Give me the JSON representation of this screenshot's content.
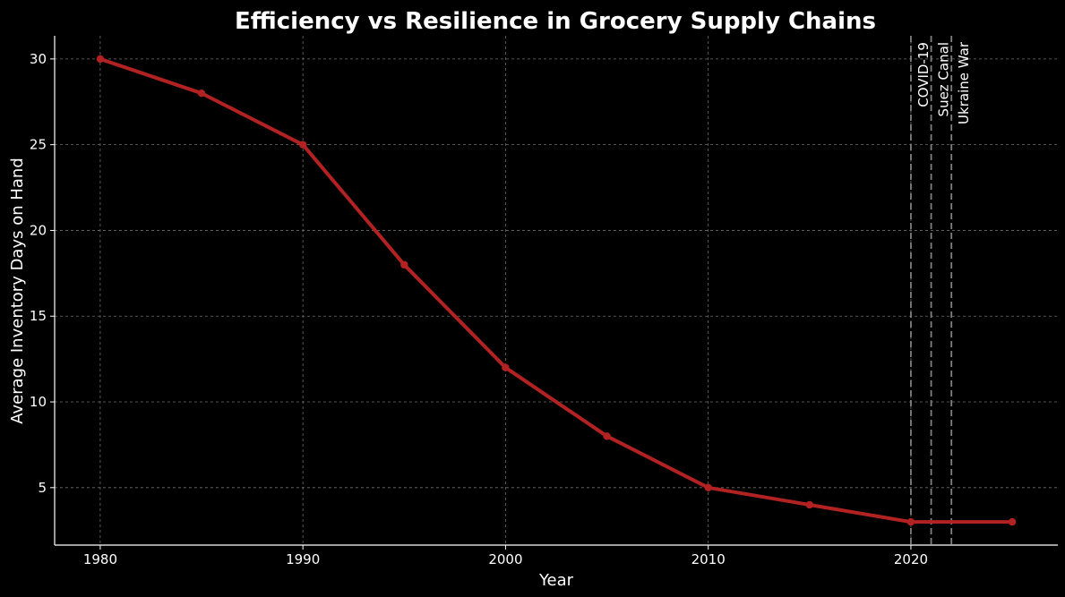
{
  "chart_data": {
    "type": "line",
    "title": "Efficiency vs Resilience in Grocery Supply Chains",
    "xlabel": "Year",
    "ylabel": "Average Inventory Days on Hand",
    "xlim": [
      1977.75,
      2027.25
    ],
    "ylim": [
      1.65,
      31.35
    ],
    "xticks": [
      1980,
      1990,
      2000,
      2010,
      2020
    ],
    "yticks": [
      5,
      10,
      15,
      20,
      25,
      30
    ],
    "grid": true,
    "series": [
      {
        "name": "Average Inventory Days on Hand",
        "color": "#b22222",
        "x": [
          1980,
          1985,
          1990,
          1995,
          2000,
          2005,
          2010,
          2015,
          2020,
          2025
        ],
        "y": [
          30,
          28,
          25,
          18,
          12,
          8,
          5,
          4,
          3,
          3
        ]
      }
    ],
    "events": [
      {
        "x": 2020,
        "label": "COVID-19"
      },
      {
        "x": 2021,
        "label": "Suez Canal"
      },
      {
        "x": 2022,
        "label": "Ukraine War"
      }
    ]
  }
}
